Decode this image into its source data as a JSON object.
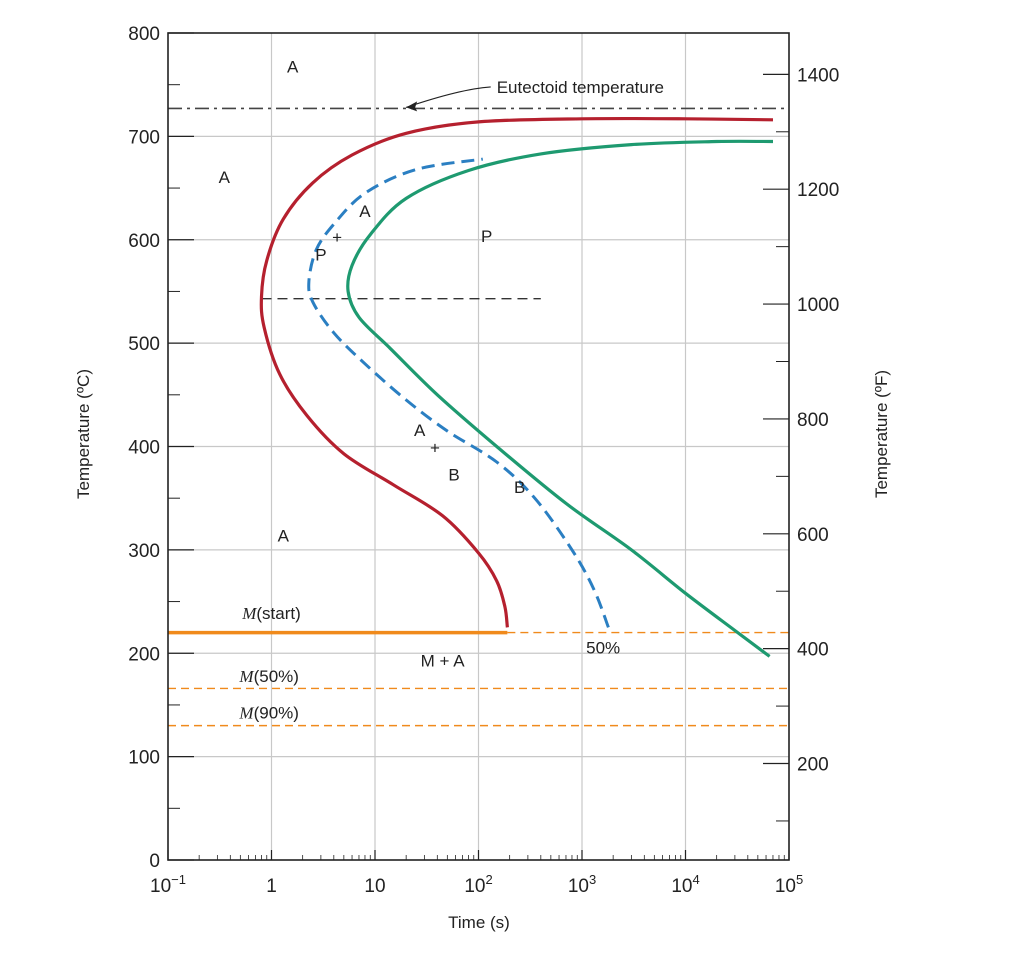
{
  "chart_data": {
    "type": "line",
    "x_scale": "log",
    "xlim": [
      0.1,
      100000
    ],
    "ylim": [
      0,
      800
    ],
    "xlabel": "Time (s)",
    "ylabel": "Temperature (ºC)",
    "ylabel_right": "Temperature (ºF)",
    "grid": true,
    "x_ticks": [
      {
        "value": 0.1,
        "base": "10",
        "exp": "−1"
      },
      {
        "value": 1,
        "base": "1",
        "exp": ""
      },
      {
        "value": 10,
        "base": "10",
        "exp": ""
      },
      {
        "value": 100,
        "base": "10",
        "exp": "2"
      },
      {
        "value": 1000,
        "base": "10",
        "exp": "3"
      },
      {
        "value": 10000,
        "base": "10",
        "exp": "4"
      },
      {
        "value": 100000,
        "base": "10",
        "exp": "5"
      }
    ],
    "y_ticks": [
      {
        "value": 0,
        "label": "0"
      },
      {
        "value": 100,
        "label": "100"
      },
      {
        "value": 200,
        "label": "200"
      },
      {
        "value": 300,
        "label": "300"
      },
      {
        "value": 400,
        "label": "400"
      },
      {
        "value": 500,
        "label": "500"
      },
      {
        "value": 600,
        "label": "600"
      },
      {
        "value": 700,
        "label": "700"
      },
      {
        "value": 800,
        "label": "800"
      }
    ],
    "y2_ticks": [
      {
        "value": 200,
        "label": "200"
      },
      {
        "value": 400,
        "label": "400"
      },
      {
        "value": 600,
        "label": "600"
      },
      {
        "value": 800,
        "label": "800"
      },
      {
        "value": 1000,
        "label": "1000"
      },
      {
        "value": 1200,
        "label": "1200"
      },
      {
        "value": 1400,
        "label": "1400"
      }
    ],
    "colors": {
      "start": "#b5202e",
      "fifty": "#2b7fc2",
      "end": "#1e9a70",
      "martensite": "#f08a1c",
      "grid": "#c8c8c8",
      "axis": "#222222",
      "dashdot": "#444444"
    },
    "series": [
      {
        "key": "start",
        "style": "solid",
        "points": [
          [
            190,
            225
          ],
          [
            180,
            245
          ],
          [
            150,
            270
          ],
          [
            100,
            297
          ],
          [
            45,
            333
          ],
          [
            15,
            363
          ],
          [
            5,
            393
          ],
          [
            2.2,
            430
          ],
          [
            1.2,
            470
          ],
          [
            0.85,
            515
          ],
          [
            0.8,
            545
          ],
          [
            0.9,
            580
          ],
          [
            1.3,
            620
          ],
          [
            2.5,
            655
          ],
          [
            6,
            682
          ],
          [
            20,
            703
          ],
          [
            100,
            714
          ],
          [
            1000,
            717
          ],
          [
            10000,
            717
          ],
          [
            70000,
            716
          ]
        ]
      },
      {
        "key": "fifty",
        "style": "dashed",
        "points": [
          [
            1800,
            225
          ],
          [
            1300,
            262
          ],
          [
            800,
            300
          ],
          [
            350,
            350
          ],
          [
            150,
            385
          ],
          [
            50,
            415
          ],
          [
            20,
            445
          ],
          [
            8,
            480
          ],
          [
            4,
            510
          ],
          [
            2.5,
            540
          ],
          [
            2.3,
            560
          ],
          [
            2.7,
            590
          ],
          [
            4,
            615
          ],
          [
            8,
            645
          ],
          [
            25,
            668
          ],
          [
            110,
            678
          ]
        ]
      },
      {
        "key": "end",
        "style": "solid",
        "points": [
          [
            65000,
            197
          ],
          [
            30000,
            222
          ],
          [
            10000,
            258
          ],
          [
            3000,
            300
          ],
          [
            700,
            345
          ],
          [
            150,
            400
          ],
          [
            40,
            450
          ],
          [
            14,
            495
          ],
          [
            7,
            525
          ],
          [
            5.5,
            550
          ],
          [
            6,
            575
          ],
          [
            9,
            605
          ],
          [
            20,
            640
          ],
          [
            80,
            667
          ],
          [
            400,
            683
          ],
          [
            3000,
            692
          ],
          [
            20000,
            695
          ],
          [
            70000,
            695
          ]
        ]
      }
    ],
    "reference_lines": [
      {
        "key": "eutectoid",
        "y": 727,
        "x_from": 0.1,
        "x_to": 100000,
        "style": "dashdot"
      },
      {
        "key": "nose",
        "y": 543,
        "x_from": 0.8,
        "x_to": 400,
        "style": "dashed"
      },
      {
        "key": "m_start_solid",
        "y": 220,
        "x_from": 0.1,
        "x_to": 190,
        "style": "solid"
      },
      {
        "key": "m_start_dashed",
        "y": 220,
        "x_from": 190,
        "x_to": 100000,
        "style": "dashed"
      },
      {
        "key": "m50",
        "y": 166,
        "x_from": 0.1,
        "x_to": 100000,
        "style": "dashed"
      },
      {
        "key": "m90",
        "y": 130,
        "x_from": 0.1,
        "x_to": 100000,
        "style": "dashed"
      }
    ],
    "annotations": [
      {
        "key": "ann-eutectoid",
        "text": "Eutectoid temperature",
        "x": 150,
        "y": 742,
        "arrow_to": [
          20,
          728
        ]
      },
      {
        "key": "ann-a-top",
        "text": "A",
        "x": 1.6,
        "y": 762
      },
      {
        "key": "ann-a-left",
        "text": "A",
        "x": 0.35,
        "y": 655
      },
      {
        "key": "ann-a-mid",
        "text": "A",
        "x": 8,
        "y": 622
      },
      {
        "key": "ann-p-mid",
        "text": "P",
        "x": 3.0,
        "y": 580
      },
      {
        "key": "ann-plus-top",
        "text": "+",
        "x": 4.3,
        "y": 597
      },
      {
        "key": "ann-p-right",
        "text": "P",
        "x": 120,
        "y": 598
      },
      {
        "key": "ann-b",
        "text": "B",
        "x": 250,
        "y": 355
      },
      {
        "key": "ann-a-low",
        "text": "A",
        "x": 27,
        "y": 410
      },
      {
        "key": "ann-plus-low",
        "text": "+",
        "x": 38,
        "y": 393
      },
      {
        "key": "ann-b-low",
        "text": "B",
        "x": 58,
        "y": 367
      },
      {
        "key": "ann-a-bottom",
        "text": "A",
        "x": 1.3,
        "y": 308
      },
      {
        "key": "ann-50pct",
        "text": "50%",
        "x": 1600,
        "y": 200
      },
      {
        "key": "ann-m-a",
        "text": "M + A",
        "x": 45,
        "y": 187
      }
    ],
    "martensite_labels": [
      {
        "key": "m-start",
        "letter": "M",
        "rest": "(start)",
        "x": 1.0,
        "y": 233
      },
      {
        "key": "m-50",
        "letter": "M",
        "rest": "(50%)",
        "x": 0.95,
        "y": 172
      },
      {
        "key": "m-90",
        "letter": "M",
        "rest": "(90%)",
        "x": 0.95,
        "y": 137
      }
    ]
  }
}
